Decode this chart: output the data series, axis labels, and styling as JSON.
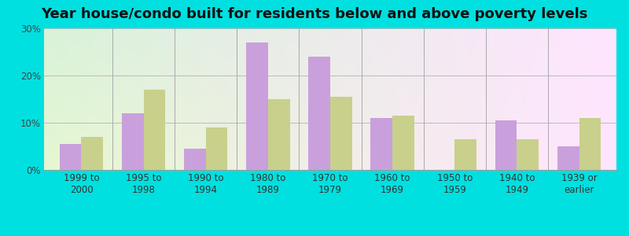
{
  "title": "Year house/condo built for residents below and above poverty levels",
  "categories": [
    "1999 to\n2000",
    "1995 to\n1998",
    "1990 to\n1994",
    "1980 to\n1989",
    "1970 to\n1979",
    "1960 to\n1969",
    "1950 to\n1959",
    "1940 to\n1949",
    "1939 or\nearlier"
  ],
  "below_poverty": [
    5.5,
    12.0,
    4.5,
    27.0,
    24.0,
    11.0,
    0.0,
    10.5,
    5.0
  ],
  "above_poverty": [
    7.0,
    17.0,
    9.0,
    15.0,
    15.5,
    11.5,
    6.5,
    6.5,
    11.0
  ],
  "below_color": "#c9a0dc",
  "above_color": "#c8d08c",
  "ylim": [
    0,
    30
  ],
  "yticks": [
    0,
    10,
    20,
    30
  ],
  "ytick_labels": [
    "0%",
    "10%",
    "20%",
    "30%"
  ],
  "outer_bg": "#00e0e0",
  "title_fontsize": 13,
  "tick_fontsize": 8.5,
  "legend_fontsize": 9.5,
  "bar_width": 0.35,
  "grid_color": "#cccccc"
}
